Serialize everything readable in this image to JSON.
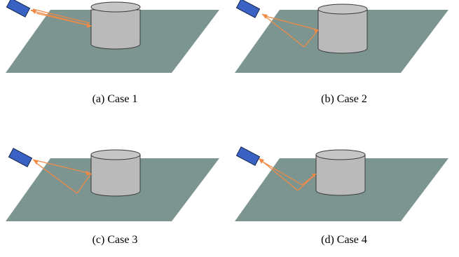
{
  "colors": {
    "plane": "#7d9591",
    "cylinder_body": "#bababa",
    "cylinder_top": "#c6c6c6",
    "cylinder_stroke": "#3a3a3a",
    "sensor": "#3a62c4",
    "sensor_stroke": "#15254d",
    "ray": "#ee8a45"
  },
  "panels": [
    {
      "id": "a",
      "caption": "(a)  Case 1"
    },
    {
      "id": "b",
      "caption": "(b)  Case 2"
    },
    {
      "id": "c",
      "caption": "(c)  Case 3"
    },
    {
      "id": "d",
      "caption": "(d)  Case 4"
    }
  ]
}
